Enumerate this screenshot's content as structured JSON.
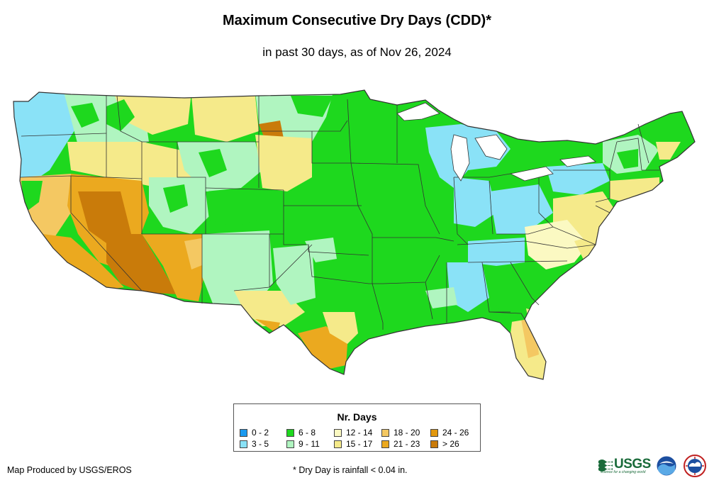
{
  "title": "Maximum Consecutive Dry Days (CDD)*",
  "subtitle": "in past 30 days, as of Nov 26, 2024",
  "legend": {
    "title": "Nr. Days",
    "items": [
      {
        "label": "0 - 2",
        "color": "#1a9af0"
      },
      {
        "label": "3 - 5",
        "color": "#8ae2f7"
      },
      {
        "label": "6 - 8",
        "color": "#1ed81e"
      },
      {
        "label": "9 - 11",
        "color": "#b0f5c0"
      },
      {
        "label": "12 - 14",
        "color": "#fbf9c2"
      },
      {
        "label": "15 - 17",
        "color": "#f5ea8a"
      },
      {
        "label": "18 - 20",
        "color": "#f4c862"
      },
      {
        "label": "21 - 23",
        "color": "#eba91f"
      },
      {
        "label": "24 - 26",
        "color": "#e2980e"
      },
      {
        "label": "> 26",
        "color": "#c97b0a"
      }
    ]
  },
  "credit": "Map Produced by USGS/EROS",
  "footnote": "* Dry Day is rainfall < 0.04 in.",
  "logos": {
    "usgs": "USGS",
    "usgs_tagline": "science for a changing world",
    "noaa": "noaa-logo",
    "nws": "nws-logo"
  }
}
